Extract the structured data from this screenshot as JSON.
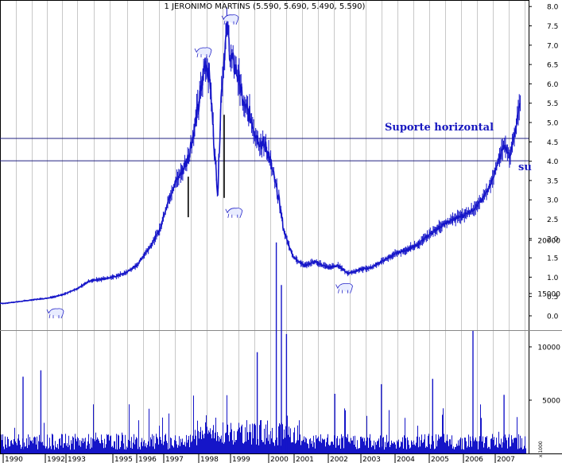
{
  "chart_data": [
    {
      "type": "line",
      "title": "1 JERONIMO MARTINS (5.590, 5.690, 5.490, 5.590)",
      "x_tick_labels": [
        "1990",
        "1992",
        "1993",
        "1995",
        "1996",
        "1997",
        "1998",
        "1999",
        "2000",
        "2001",
        "2002",
        "2003",
        "2004",
        "2005",
        "2006",
        "2007"
      ],
      "y_tick_labels": [
        "0.0",
        "0.5",
        "1.0",
        "1.5",
        "2.0",
        "2.5",
        "3.0",
        "3.5",
        "4.0",
        "4.5",
        "5.0",
        "5.5",
        "6.0",
        "6.5",
        "7.0",
        "7.5",
        "8.0"
      ],
      "ylim": [
        0,
        8
      ],
      "grid": "vertical",
      "series": [
        {
          "color": "#1515c8",
          "x": [
            1989.2,
            1990.0,
            1990.5,
            1991.0,
            1991.5,
            1992.0,
            1992.5,
            1993.0,
            1993.5,
            1994.0,
            1994.5,
            1995.0,
            1995.5,
            1996.0,
            1996.3,
            1996.6,
            1996.9,
            1997.1,
            1997.3,
            1997.5,
            1997.7,
            1998.0,
            1998.2,
            1998.35,
            1998.5,
            1998.6,
            1998.7,
            1998.8,
            1998.9,
            1999.0,
            1999.2,
            1999.35,
            1999.5,
            1999.7,
            1999.9,
            2000.0,
            2000.2,
            2000.4,
            2000.6,
            2000.8,
            2001.0,
            2001.3,
            2001.6,
            2002.0,
            2002.3,
            2002.6,
            2003.0,
            2003.3,
            2003.6,
            2004.0,
            2004.3,
            2004.6,
            2005.0,
            2005.3,
            2005.6,
            2006.0,
            2006.3,
            2006.6,
            2006.9,
            2007.1,
            2007.3,
            2007.5,
            2007.7,
            2007.85
          ],
          "y": [
            0.35,
            0.32,
            0.35,
            0.38,
            0.42,
            0.45,
            0.5,
            0.58,
            0.7,
            0.9,
            0.95,
            1.0,
            1.1,
            1.3,
            1.6,
            1.9,
            2.3,
            2.9,
            3.4,
            3.7,
            4.1,
            5.4,
            6.6,
            6.2,
            4.2,
            3.2,
            5.6,
            6.8,
            7.4,
            6.7,
            6.2,
            5.4,
            5.2,
            4.6,
            4.4,
            4.2,
            3.6,
            3.0,
            2.2,
            1.8,
            1.5,
            1.3,
            1.4,
            1.25,
            1.3,
            1.1,
            1.2,
            1.25,
            1.4,
            1.6,
            1.7,
            1.8,
            2.1,
            2.3,
            2.45,
            2.6,
            2.75,
            3.0,
            3.5,
            4.0,
            4.4,
            4.1,
            4.9,
            5.5
          ]
        }
      ],
      "horizontal_lines": [
        4.6,
        4.02
      ],
      "annotations": [
        "Suporte horizontal",
        "su"
      ],
      "icon_marks": [
        {
          "name": "bear-icon",
          "x": 1992.5,
          "y": 0.1
        },
        {
          "name": "bull-icon",
          "x": 1998.15,
          "y": 6.85
        },
        {
          "name": "bull-icon",
          "x": 1999.0,
          "y": 7.7
        },
        {
          "name": "bear-icon",
          "x": 1999.1,
          "y": 2.7
        },
        {
          "name": "bear-icon",
          "x": 2002.5,
          "y": 0.75
        }
      ]
    },
    {
      "type": "bar",
      "title": "",
      "y_tick_labels": [
        "5000",
        "10000",
        "15000",
        "20000"
      ],
      "ylim": [
        0,
        21000
      ],
      "unit_label": "x 1000",
      "spikes": [
        [
          1999.7,
          9500
        ],
        [
          2000.3,
          19800
        ],
        [
          2000.5,
          15800
        ],
        [
          2000.7,
          11200
        ],
        [
          2006.3,
          11500
        ],
        [
          2005.1,
          7000
        ],
        [
          2003.6,
          6500
        ],
        [
          2002.2,
          5600
        ],
        [
          2007.3,
          5500
        ],
        [
          1991.0,
          7200
        ],
        [
          1991.8,
          7800
        ]
      ]
    }
  ]
}
